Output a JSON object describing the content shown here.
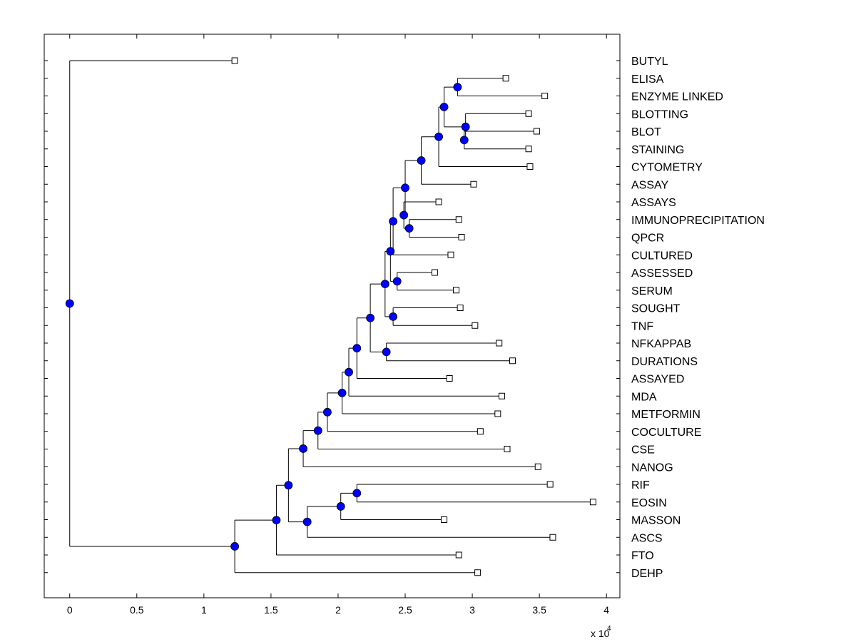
{
  "chart_data": {
    "type": "dendrogram",
    "orientation": "horizontal",
    "xlim": [
      -0.19,
      4.1
    ],
    "x_ticks": [
      0,
      0.5,
      1,
      1.5,
      2,
      2.5,
      3,
      3.5,
      4
    ],
    "x_tick_labels": [
      "0",
      "0.5",
      "1",
      "1.5",
      "2",
      "2.5",
      "3",
      "3.5",
      "4"
    ],
    "x_scale_label": "x 10",
    "x_scale_exponent": "4",
    "leaves": [
      {
        "label": "BUTYL",
        "x": 1.23
      },
      {
        "label": "ELISA",
        "x": 3.25
      },
      {
        "label": "ENZYME LINKED",
        "x": 3.54
      },
      {
        "label": "BLOTTING",
        "x": 3.42
      },
      {
        "label": "BLOT",
        "x": 3.48
      },
      {
        "label": "STAINING",
        "x": 3.42
      },
      {
        "label": "CYTOMETRY",
        "x": 3.43
      },
      {
        "label": "ASSAY",
        "x": 3.01
      },
      {
        "label": "ASSAYS",
        "x": 2.75
      },
      {
        "label": "IMMUNOPRECIPITATION",
        "x": 2.9
      },
      {
        "label": "QPCR",
        "x": 2.92
      },
      {
        "label": "CULTURED",
        "x": 2.84
      },
      {
        "label": "ASSESSED",
        "x": 2.72
      },
      {
        "label": "SERUM",
        "x": 2.88
      },
      {
        "label": "SOUGHT",
        "x": 2.91
      },
      {
        "label": "TNF",
        "x": 3.02
      },
      {
        "label": "NFKAPPAB",
        "x": 3.2
      },
      {
        "label": "DURATIONS",
        "x": 3.3
      },
      {
        "label": "ASSAYED",
        "x": 2.83
      },
      {
        "label": "MDA",
        "x": 3.22
      },
      {
        "label": "METFORMIN",
        "x": 3.19
      },
      {
        "label": "COCULTURE",
        "x": 3.06
      },
      {
        "label": "CSE",
        "x": 3.26
      },
      {
        "label": "NANOG",
        "x": 3.49
      },
      {
        "label": "RIF",
        "x": 3.58
      },
      {
        "label": "EOSIN",
        "x": 3.9
      },
      {
        "label": "MASSON",
        "x": 2.79
      },
      {
        "label": "ASCS",
        "x": 3.6
      },
      {
        "label": "FTO",
        "x": 2.9
      },
      {
        "label": "DEHP",
        "x": 3.04
      }
    ],
    "nodes": [
      {
        "id": "n1",
        "x": 2.89,
        "children": [
          "ELISA",
          "ENZYME LINKED"
        ]
      },
      {
        "id": "n2",
        "x": 2.94,
        "children": [
          "BLOT",
          "STAINING"
        ]
      },
      {
        "id": "n3",
        "x": 2.95,
        "children": [
          "BLOTTING",
          "n2"
        ]
      },
      {
        "id": "n4",
        "x": 2.79,
        "children": [
          "n1",
          "n3"
        ]
      },
      {
        "id": "n5",
        "x": 2.75,
        "children": [
          "n4",
          "CYTOMETRY"
        ]
      },
      {
        "id": "n6",
        "x": 2.62,
        "children": [
          "n5",
          "ASSAY"
        ]
      },
      {
        "id": "n7",
        "x": 2.53,
        "children": [
          "IMMUNOPRECIPITATION",
          "QPCR"
        ]
      },
      {
        "id": "n8",
        "x": 2.49,
        "children": [
          "ASSAYS",
          "n7"
        ]
      },
      {
        "id": "n9",
        "x": 2.5,
        "children": [
          "n6",
          "n8"
        ]
      },
      {
        "id": "n10",
        "x": 2.41,
        "children": [
          "n9",
          "CULTURED"
        ]
      },
      {
        "id": "n11",
        "x": 2.44,
        "children": [
          "ASSESSED",
          "SERUM"
        ]
      },
      {
        "id": "n12",
        "x": 2.39,
        "children": [
          "n10",
          "n11"
        ]
      },
      {
        "id": "n13",
        "x": 2.41,
        "children": [
          "SOUGHT",
          "TNF"
        ]
      },
      {
        "id": "n14",
        "x": 2.35,
        "children": [
          "n12",
          "n13"
        ]
      },
      {
        "id": "n15",
        "x": 2.36,
        "children": [
          "NFKAPPAB",
          "DURATIONS"
        ]
      },
      {
        "id": "n16",
        "x": 2.24,
        "children": [
          "n14",
          "n15"
        ]
      },
      {
        "id": "n17",
        "x": 2.14,
        "children": [
          "n16",
          "ASSAYED"
        ]
      },
      {
        "id": "n18",
        "x": 2.08,
        "children": [
          "n17",
          "MDA"
        ]
      },
      {
        "id": "n19",
        "x": 2.03,
        "children": [
          "n18",
          "METFORMIN"
        ]
      },
      {
        "id": "n20",
        "x": 1.92,
        "children": [
          "n19",
          "COCULTURE"
        ]
      },
      {
        "id": "n21",
        "x": 1.85,
        "children": [
          "n20",
          "CSE"
        ]
      },
      {
        "id": "n22",
        "x": 1.74,
        "children": [
          "n21",
          "NANOG"
        ]
      },
      {
        "id": "n23",
        "x": 2.14,
        "children": [
          "RIF",
          "EOSIN"
        ]
      },
      {
        "id": "n24",
        "x": 2.02,
        "children": [
          "n23",
          "MASSON"
        ]
      },
      {
        "id": "n25",
        "x": 1.77,
        "children": [
          "n24",
          "ASCS"
        ]
      },
      {
        "id": "n26",
        "x": 1.63,
        "children": [
          "n22",
          "n25"
        ]
      },
      {
        "id": "n27",
        "x": 1.54,
        "children": [
          "n26",
          "FTO"
        ]
      },
      {
        "id": "n28",
        "x": 1.23,
        "children": [
          "n27",
          "DEHP"
        ]
      },
      {
        "id": "n29",
        "x": 0.0,
        "children": [
          "BUTYL",
          "n28"
        ]
      }
    ],
    "colors": {
      "node_fill": "#0000ff",
      "leaf_fill": "#ffffff",
      "line": "#000000"
    }
  }
}
